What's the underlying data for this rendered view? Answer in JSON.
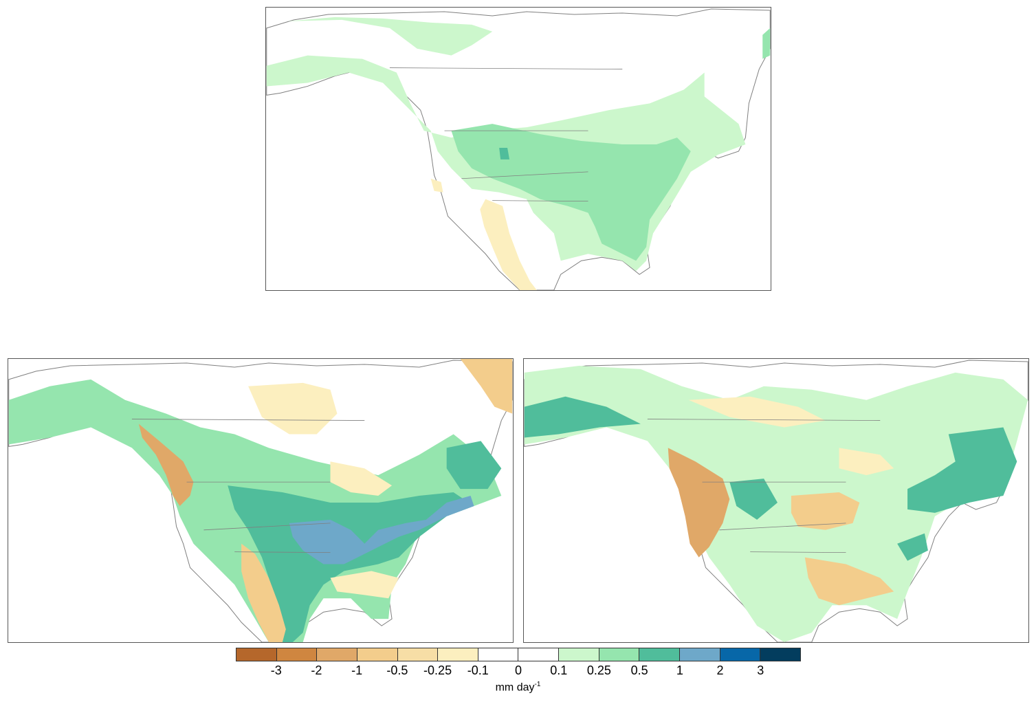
{
  "figure": {
    "panels": [
      {
        "id": "top",
        "region": "North America"
      },
      {
        "id": "bottom-left",
        "region": "North America"
      },
      {
        "id": "bottom-right",
        "region": "North America"
      }
    ]
  },
  "colorbar": {
    "tick_labels": [
      "-3",
      "-2",
      "-1",
      "-0.5",
      "-0.25",
      "-0.1",
      "0",
      "0.1",
      "0.25",
      "0.5",
      "1",
      "2",
      "3"
    ],
    "colors": [
      "#b5672b",
      "#cf8640",
      "#e0a868",
      "#f3cd8c",
      "#f7dea6",
      "#fcefbf",
      "#ffffff",
      "#ffffff",
      "#ccf7cc",
      "#95e5ae",
      "#50bd9b",
      "#6ea8c9",
      "#0767a8",
      "#033d5e"
    ],
    "units_base": "mm day",
    "units_exp": "-1"
  },
  "palette": {
    "land_outline": "#7f7f7f",
    "neg_light": "#fcefbf",
    "neg_med": "#f3cd8c",
    "neg_strong": "#e0a868",
    "neg_vstrong": "#cf8640",
    "pos_light": "#ccf7cc",
    "pos_med": "#95e5ae",
    "pos_strong": "#50bd9b",
    "pos_vstrong": "#6ea8c9"
  }
}
